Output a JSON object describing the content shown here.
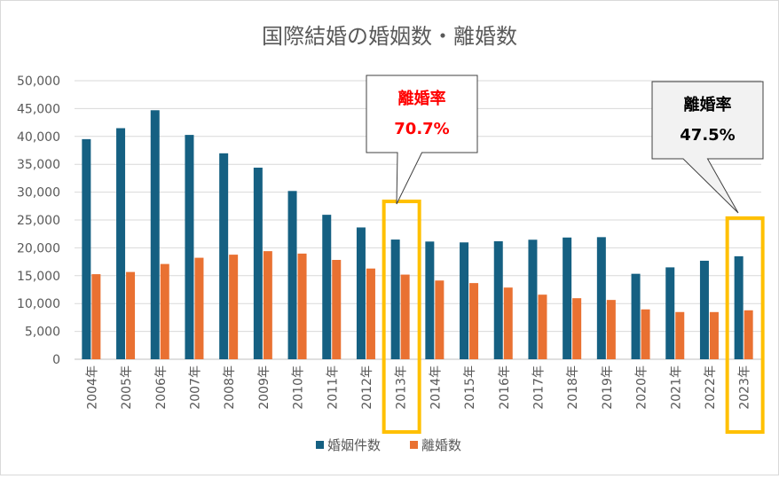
{
  "chart_data": {
    "type": "bar",
    "title": "国際結婚の婚姻数・離婚数",
    "categories": [
      "2004年",
      "2005年",
      "2006年",
      "2007年",
      "2008年",
      "2009年",
      "2010年",
      "2011年",
      "2012年",
      "2013年",
      "2014年",
      "2015年",
      "2016年",
      "2017年",
      "2018年",
      "2019年",
      "2020年",
      "2021年",
      "2022年",
      "2023年"
    ],
    "series": [
      {
        "name": "婚姻件数",
        "color": "#156082",
        "values": [
          39511,
          41481,
          44701,
          40272,
          36969,
          34393,
          30207,
          25934,
          23657,
          21488,
          21130,
          20976,
          21180,
          21457,
          21852,
          21919,
          15341,
          16496,
          17685,
          18489
        ]
      },
      {
        "name": "離婚数",
        "color": "#E97132",
        "values": [
          15272,
          15666,
          17102,
          18220,
          18774,
          19404,
          18968,
          17832,
          16288,
          15196,
          14135,
          13675,
          12871,
          11596,
          10960,
          10647,
          8951,
          8477,
          8469,
          8788
        ]
      }
    ],
    "ylim": [
      0,
      50000
    ],
    "yticks": [
      "0",
      "5,000",
      "10,000",
      "15,000",
      "20,000",
      "25,000",
      "30,000",
      "35,000",
      "40,000",
      "45,000",
      "50,000"
    ],
    "grid": true,
    "legend": "bottom",
    "annotations": [
      {
        "category": "2013年",
        "label": "離婚率",
        "value": "70.7%",
        "color": "#FF0000"
      },
      {
        "category": "2023年",
        "label": "離婚率",
        "value": "47.5%",
        "color": "#000000"
      }
    ],
    "highlight_color": "#FFC000"
  }
}
